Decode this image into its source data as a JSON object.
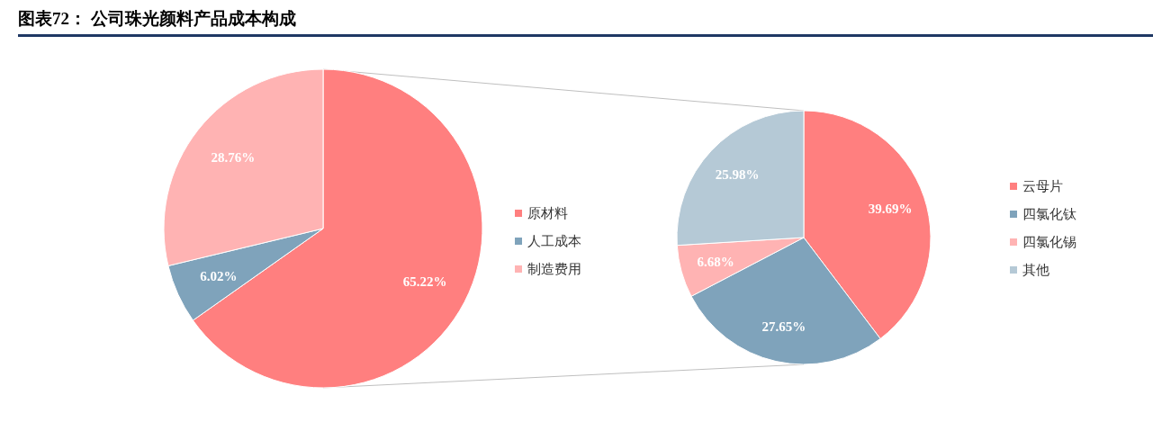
{
  "chart_data": [
    {
      "type": "pie",
      "title": "图表72： 公司珠光颜料产品成本构成",
      "categories": [
        "原材料",
        "人工成本",
        "制造费用"
      ],
      "values": [
        65.22,
        6.02,
        28.76
      ],
      "colors": [
        "#ff7f7f",
        "#7fa3bb",
        "#ffb3b3"
      ],
      "value_labels": [
        "65.22%",
        "6.02%",
        "28.76%"
      ],
      "legend": "right"
    },
    {
      "type": "pie",
      "categories": [
        "云母片",
        "四氯化钛",
        "四氯化锡",
        "其他"
      ],
      "values": [
        39.69,
        27.65,
        6.68,
        25.98
      ],
      "colors": [
        "#ff7f7f",
        "#7fa3bb",
        "#ffb3b3",
        "#b5c9d6"
      ],
      "value_labels": [
        "39.69%",
        "27.65%",
        "6.68%",
        "25.98%"
      ],
      "legend": "right"
    }
  ]
}
